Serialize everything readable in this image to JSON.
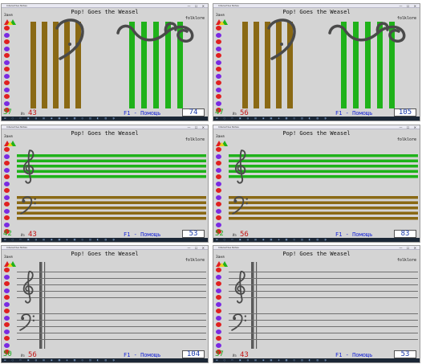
{
  "app": {
    "song_title": "Pop! Goes the Weasel",
    "menu_label": "Заня",
    "genre": "folklore",
    "help": "F1 - Помощь",
    "window_title": "Interactive Notes",
    "window_controls": "— ☐ ✕",
    "taskbar_icons": "⊞ ○ ▭ ▣ ◍ ▤ ◉ ▦ ◈ ▩ ◎ ▥ ◐ ▧ ◑"
  },
  "colors": {
    "brown": "#8a6914",
    "green": "#1fb21a",
    "gray_line": "#707070",
    "ink": "#4a4a4a"
  },
  "toolbar_colors": [
    "#e02020",
    "#7a2be2",
    "#e02020",
    "#7a2be2",
    "#e02020",
    "#7a2be2",
    "#e02020",
    "#7a2be2",
    "#e02020",
    "#7a2be2",
    "#e02020",
    "#7a2be2",
    "#e02020"
  ],
  "panels": [
    {
      "mode": "bars",
      "clef_stage": "partial",
      "green": "37",
      "red": "43",
      "score": "74"
    },
    {
      "mode": "bars",
      "clef_stage": "partial",
      "green": "47",
      "red": "56",
      "score": "105"
    },
    {
      "mode": "colored",
      "green": "42",
      "red": "43",
      "score": "53"
    },
    {
      "mode": "colored",
      "green": "52",
      "red": "56",
      "score": "83"
    },
    {
      "mode": "gray",
      "green": "50",
      "red": "56",
      "score": "104"
    },
    {
      "mode": "gray",
      "green": "37",
      "red": "43",
      "score": "53"
    }
  ]
}
